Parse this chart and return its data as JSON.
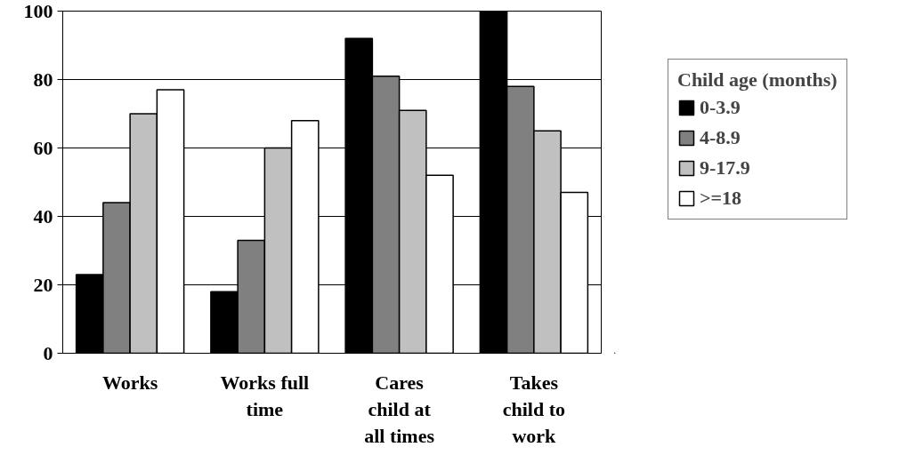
{
  "chart_data": {
    "type": "bar",
    "categories": [
      "Works",
      "Works full time",
      "Cares child at all times",
      "Takes child to work"
    ],
    "series": [
      {
        "name": "0-3.9",
        "color": "#000000",
        "values": [
          23,
          18,
          92,
          100
        ]
      },
      {
        "name": "4-8.9",
        "color": "#808080",
        "values": [
          44,
          33,
          81,
          78
        ]
      },
      {
        "name": "9-17.9",
        "color": "#c0c0c0",
        "values": [
          70,
          60,
          71,
          65
        ]
      },
      {
        "name": ">=18",
        "color": "#ffffff",
        "values": [
          77,
          68,
          52,
          47
        ]
      }
    ],
    "legend_title": "Child age (months)",
    "legend": "right",
    "ylim": [
      0,
      100
    ],
    "yticks": [
      0,
      20,
      40,
      60,
      80,
      100
    ],
    "grid": "y"
  }
}
